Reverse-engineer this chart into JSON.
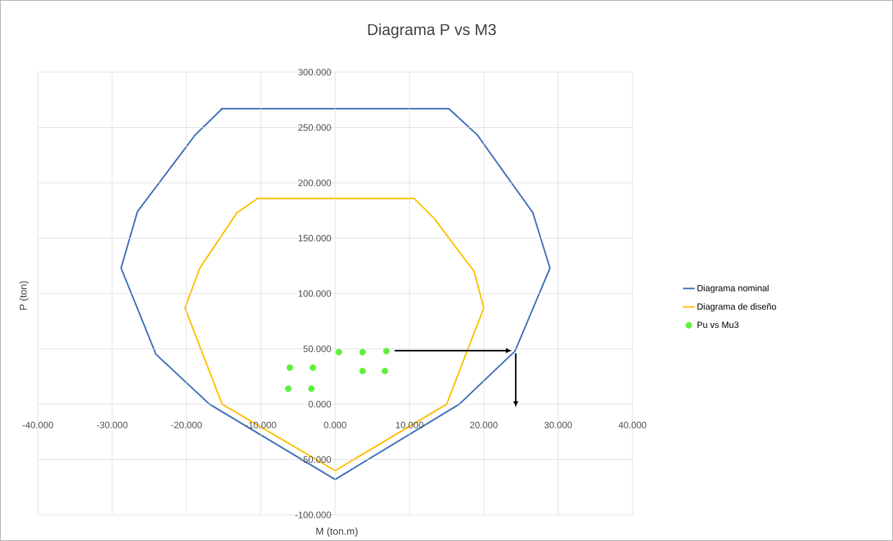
{
  "chart_data": {
    "type": "line",
    "title": "Diagrama P vs M3",
    "xlabel": "M (ton.m)",
    "ylabel": "P (ton)",
    "xlim": [
      -40,
      40
    ],
    "ylim": [
      -100,
      300
    ],
    "xticks": [
      {
        "value": -40,
        "label": "-40.000"
      },
      {
        "value": -30,
        "label": "-30.000"
      },
      {
        "value": -20,
        "label": "-20.000"
      },
      {
        "value": -10,
        "label": "-10.000"
      },
      {
        "value": 0,
        "label": "0.000"
      },
      {
        "value": 10,
        "label": "10.000"
      },
      {
        "value": 20,
        "label": "20.000"
      },
      {
        "value": 30,
        "label": "30.000"
      },
      {
        "value": 40,
        "label": "40.000"
      }
    ],
    "yticks": [
      {
        "value": -100,
        "label": "-100.000"
      },
      {
        "value": -50,
        "label": "-50.000"
      },
      {
        "value": 0,
        "label": "0.000"
      },
      {
        "value": 50,
        "label": "50.000"
      },
      {
        "value": 100,
        "label": "100.000"
      },
      {
        "value": 150,
        "label": "150.000"
      },
      {
        "value": 200,
        "label": "200.000"
      },
      {
        "value": 250,
        "label": "250.000"
      },
      {
        "value": 300,
        "label": "300.000"
      }
    ],
    "grid": true,
    "legend": "right",
    "series": [
      {
        "name": "Diagrama nominal",
        "type": "line",
        "color": "#3f6fb8",
        "marker": "none",
        "x": [
          -15.4,
          15.3,
          19.1,
          26.6,
          28.9,
          24.2,
          16.7,
          0,
          -16.9,
          -24.1,
          -28.8,
          -26.6,
          -18.8,
          -15.2
        ],
        "values": [
          267,
          267,
          243.5,
          173,
          123,
          48,
          0,
          -68,
          0,
          45,
          123,
          174,
          243.5,
          267
        ]
      },
      {
        "name": "Diagrama de diseño",
        "type": "line",
        "color": "#ffc000",
        "marker": "none",
        "x": [
          -10.6,
          10.6,
          13.3,
          18.7,
          20,
          15,
          0,
          -15.2,
          -20.2,
          -18.2,
          -13.2,
          -10.4
        ],
        "values": [
          186,
          186,
          168,
          120,
          87,
          0,
          -60,
          0,
          87,
          123,
          173,
          186
        ]
      },
      {
        "name": "Pu vs Mu3",
        "type": "scatter",
        "color": "#5ef03c",
        "marker": "circle",
        "x": [
          0.5,
          3.7,
          6.9,
          3.7,
          6.7,
          -6.1,
          -3.0,
          -6.3,
          -3.2
        ],
        "values": [
          47,
          47,
          48,
          30,
          30,
          33,
          33,
          14,
          14
        ]
      }
    ]
  }
}
